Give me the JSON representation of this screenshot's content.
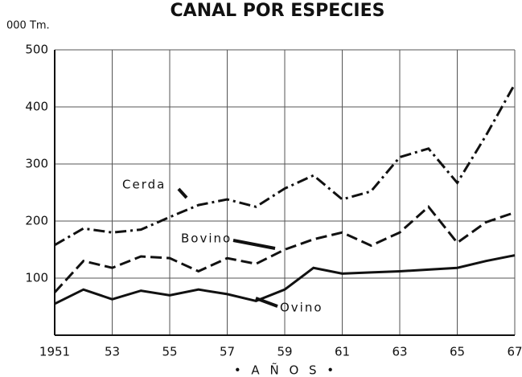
{
  "chart_data": {
    "type": "line",
    "title": "CANAL POR ESPECIES",
    "y_axis_label": "000 Tm.",
    "x_axis_label": "• A Ñ O S •",
    "x": [
      1951,
      1952,
      1953,
      1954,
      1955,
      1956,
      1957,
      1958,
      1959,
      1960,
      1961,
      1962,
      1963,
      1964,
      1965,
      1966,
      1967
    ],
    "series": [
      {
        "name": "Cerda",
        "color": "#111111",
        "dash": "dashdot",
        "values": [
          158,
          187,
          180,
          185,
          207,
          228,
          238,
          225,
          257,
          280,
          238,
          252,
          312,
          327,
          267,
          350,
          440
        ]
      },
      {
        "name": "Bovino",
        "color": "#111111",
        "dash": "dashed",
        "values": [
          75,
          130,
          118,
          138,
          135,
          112,
          135,
          125,
          150,
          168,
          180,
          157,
          180,
          225,
          162,
          198,
          215
        ]
      },
      {
        "name": "Ovino",
        "color": "#111111",
        "dash": "solid",
        "values": [
          55,
          80,
          63,
          78,
          70,
          80,
          72,
          60,
          80,
          118,
          108,
          110,
          112,
          115,
          118,
          130,
          140
        ]
      }
    ],
    "xlim": [
      1951,
      1967
    ],
    "xticks": [
      1951,
      {
        "value": 1953,
        "label": "53"
      },
      {
        "value": 1955,
        "label": "55"
      },
      {
        "value": 1957,
        "label": "57"
      },
      {
        "value": 1959,
        "label": "59"
      },
      {
        "value": 1961,
        "label": "61"
      },
      {
        "value": 1963,
        "label": "63"
      },
      {
        "value": 1965,
        "label": "65"
      },
      {
        "value": 1967,
        "label": "67"
      }
    ],
    "ylim": [
      0,
      500
    ],
    "yticks": [
      100,
      200,
      300,
      400,
      500
    ],
    "grid": true
  }
}
